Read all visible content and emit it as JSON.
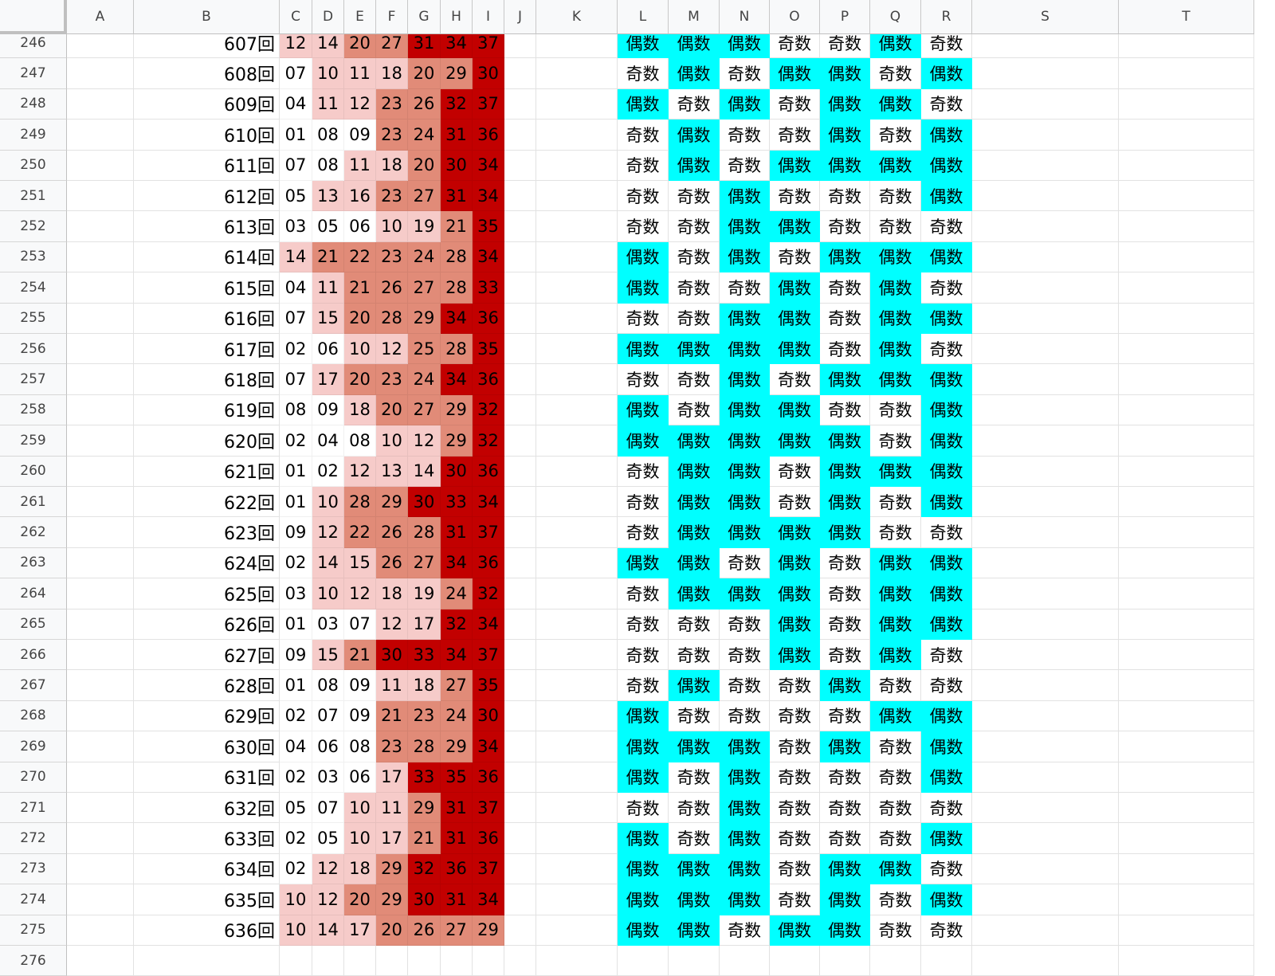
{
  "sheet": {
    "columns": [
      "A",
      "B",
      "C",
      "D",
      "E",
      "F",
      "G",
      "H",
      "I",
      "J",
      "K",
      "L",
      "M",
      "N",
      "O",
      "P",
      "Q",
      "R",
      "S",
      "T"
    ],
    "first_row_number": 246,
    "trailing_row_number": 276,
    "colors": {
      "even": "#00ffff",
      "heat_1": "#f6cbc9",
      "heat_2": "#f0bbb7",
      "heat_3": "#e18b78",
      "heat_4": "#d6624e",
      "heat_5": "#c20000"
    },
    "rows": [
      {
        "draw": "607回",
        "nums": [
          "12",
          "14",
          "20",
          "27",
          "31",
          "34",
          "37"
        ],
        "parity": [
          "偶数",
          "偶数",
          "偶数",
          "奇数",
          "奇数",
          "偶数",
          "奇数"
        ]
      },
      {
        "draw": "608回",
        "nums": [
          "07",
          "10",
          "11",
          "18",
          "20",
          "29",
          "30"
        ],
        "parity": [
          "奇数",
          "偶数",
          "奇数",
          "偶数",
          "偶数",
          "奇数",
          "偶数"
        ]
      },
      {
        "draw": "609回",
        "nums": [
          "04",
          "11",
          "12",
          "23",
          "26",
          "32",
          "37"
        ],
        "parity": [
          "偶数",
          "奇数",
          "偶数",
          "奇数",
          "偶数",
          "偶数",
          "奇数"
        ]
      },
      {
        "draw": "610回",
        "nums": [
          "01",
          "08",
          "09",
          "23",
          "24",
          "31",
          "36"
        ],
        "parity": [
          "奇数",
          "偶数",
          "奇数",
          "奇数",
          "偶数",
          "奇数",
          "偶数"
        ]
      },
      {
        "draw": "611回",
        "nums": [
          "07",
          "08",
          "11",
          "18",
          "20",
          "30",
          "34"
        ],
        "parity": [
          "奇数",
          "偶数",
          "奇数",
          "偶数",
          "偶数",
          "偶数",
          "偶数"
        ]
      },
      {
        "draw": "612回",
        "nums": [
          "05",
          "13",
          "16",
          "23",
          "27",
          "31",
          "34"
        ],
        "parity": [
          "奇数",
          "奇数",
          "偶数",
          "奇数",
          "奇数",
          "奇数",
          "偶数"
        ]
      },
      {
        "draw": "613回",
        "nums": [
          "03",
          "05",
          "06",
          "10",
          "19",
          "21",
          "35"
        ],
        "parity": [
          "奇数",
          "奇数",
          "偶数",
          "偶数",
          "奇数",
          "奇数",
          "奇数"
        ]
      },
      {
        "draw": "614回",
        "nums": [
          "14",
          "21",
          "22",
          "23",
          "24",
          "28",
          "34"
        ],
        "parity": [
          "偶数",
          "奇数",
          "偶数",
          "奇数",
          "偶数",
          "偶数",
          "偶数"
        ]
      },
      {
        "draw": "615回",
        "nums": [
          "04",
          "11",
          "21",
          "26",
          "27",
          "28",
          "33"
        ],
        "parity": [
          "偶数",
          "奇数",
          "奇数",
          "偶数",
          "奇数",
          "偶数",
          "奇数"
        ]
      },
      {
        "draw": "616回",
        "nums": [
          "07",
          "15",
          "20",
          "28",
          "29",
          "34",
          "36"
        ],
        "parity": [
          "奇数",
          "奇数",
          "偶数",
          "偶数",
          "奇数",
          "偶数",
          "偶数"
        ]
      },
      {
        "draw": "617回",
        "nums": [
          "02",
          "06",
          "10",
          "12",
          "25",
          "28",
          "35"
        ],
        "parity": [
          "偶数",
          "偶数",
          "偶数",
          "偶数",
          "奇数",
          "偶数",
          "奇数"
        ]
      },
      {
        "draw": "618回",
        "nums": [
          "07",
          "17",
          "20",
          "23",
          "24",
          "34",
          "36"
        ],
        "parity": [
          "奇数",
          "奇数",
          "偶数",
          "奇数",
          "偶数",
          "偶数",
          "偶数"
        ]
      },
      {
        "draw": "619回",
        "nums": [
          "08",
          "09",
          "18",
          "20",
          "27",
          "29",
          "32"
        ],
        "parity": [
          "偶数",
          "奇数",
          "偶数",
          "偶数",
          "奇数",
          "奇数",
          "偶数"
        ]
      },
      {
        "draw": "620回",
        "nums": [
          "02",
          "04",
          "08",
          "10",
          "12",
          "29",
          "32"
        ],
        "parity": [
          "偶数",
          "偶数",
          "偶数",
          "偶数",
          "偶数",
          "奇数",
          "偶数"
        ]
      },
      {
        "draw": "621回",
        "nums": [
          "01",
          "02",
          "12",
          "13",
          "14",
          "30",
          "36"
        ],
        "parity": [
          "奇数",
          "偶数",
          "偶数",
          "奇数",
          "偶数",
          "偶数",
          "偶数"
        ]
      },
      {
        "draw": "622回",
        "nums": [
          "01",
          "10",
          "28",
          "29",
          "30",
          "33",
          "34"
        ],
        "parity": [
          "奇数",
          "偶数",
          "偶数",
          "奇数",
          "偶数",
          "奇数",
          "偶数"
        ]
      },
      {
        "draw": "623回",
        "nums": [
          "09",
          "12",
          "22",
          "26",
          "28",
          "31",
          "37"
        ],
        "parity": [
          "奇数",
          "偶数",
          "偶数",
          "偶数",
          "偶数",
          "奇数",
          "奇数"
        ]
      },
      {
        "draw": "624回",
        "nums": [
          "02",
          "14",
          "15",
          "26",
          "27",
          "34",
          "36"
        ],
        "parity": [
          "偶数",
          "偶数",
          "奇数",
          "偶数",
          "奇数",
          "偶数",
          "偶数"
        ]
      },
      {
        "draw": "625回",
        "nums": [
          "03",
          "10",
          "12",
          "18",
          "19",
          "24",
          "32"
        ],
        "parity": [
          "奇数",
          "偶数",
          "偶数",
          "偶数",
          "奇数",
          "偶数",
          "偶数"
        ]
      },
      {
        "draw": "626回",
        "nums": [
          "01",
          "03",
          "07",
          "12",
          "17",
          "32",
          "34"
        ],
        "parity": [
          "奇数",
          "奇数",
          "奇数",
          "偶数",
          "奇数",
          "偶数",
          "偶数"
        ]
      },
      {
        "draw": "627回",
        "nums": [
          "09",
          "15",
          "21",
          "30",
          "33",
          "34",
          "37"
        ],
        "parity": [
          "奇数",
          "奇数",
          "奇数",
          "偶数",
          "奇数",
          "偶数",
          "奇数"
        ]
      },
      {
        "draw": "628回",
        "nums": [
          "01",
          "08",
          "09",
          "11",
          "18",
          "27",
          "35"
        ],
        "parity": [
          "奇数",
          "偶数",
          "奇数",
          "奇数",
          "偶数",
          "奇数",
          "奇数"
        ]
      },
      {
        "draw": "629回",
        "nums": [
          "02",
          "07",
          "09",
          "21",
          "23",
          "24",
          "30"
        ],
        "parity": [
          "偶数",
          "奇数",
          "奇数",
          "奇数",
          "奇数",
          "偶数",
          "偶数"
        ]
      },
      {
        "draw": "630回",
        "nums": [
          "04",
          "06",
          "08",
          "23",
          "28",
          "29",
          "34"
        ],
        "parity": [
          "偶数",
          "偶数",
          "偶数",
          "奇数",
          "偶数",
          "奇数",
          "偶数"
        ]
      },
      {
        "draw": "631回",
        "nums": [
          "02",
          "03",
          "06",
          "17",
          "33",
          "35",
          "36"
        ],
        "parity": [
          "偶数",
          "奇数",
          "偶数",
          "奇数",
          "奇数",
          "奇数",
          "偶数"
        ]
      },
      {
        "draw": "632回",
        "nums": [
          "05",
          "07",
          "10",
          "11",
          "29",
          "31",
          "37"
        ],
        "parity": [
          "奇数",
          "奇数",
          "偶数",
          "奇数",
          "奇数",
          "奇数",
          "奇数"
        ]
      },
      {
        "draw": "633回",
        "nums": [
          "02",
          "05",
          "10",
          "17",
          "21",
          "31",
          "36"
        ],
        "parity": [
          "偶数",
          "奇数",
          "偶数",
          "奇数",
          "奇数",
          "奇数",
          "偶数"
        ]
      },
      {
        "draw": "634回",
        "nums": [
          "02",
          "12",
          "18",
          "29",
          "32",
          "36",
          "37"
        ],
        "parity": [
          "偶数",
          "偶数",
          "偶数",
          "奇数",
          "偶数",
          "偶数",
          "奇数"
        ]
      },
      {
        "draw": "635回",
        "nums": [
          "10",
          "12",
          "20",
          "29",
          "30",
          "31",
          "34"
        ],
        "parity": [
          "偶数",
          "偶数",
          "偶数",
          "奇数",
          "偶数",
          "奇数",
          "偶数"
        ]
      },
      {
        "draw": "636回",
        "nums": [
          "10",
          "14",
          "17",
          "20",
          "26",
          "27",
          "29"
        ],
        "parity": [
          "偶数",
          "偶数",
          "奇数",
          "偶数",
          "偶数",
          "奇数",
          "奇数"
        ]
      }
    ]
  }
}
